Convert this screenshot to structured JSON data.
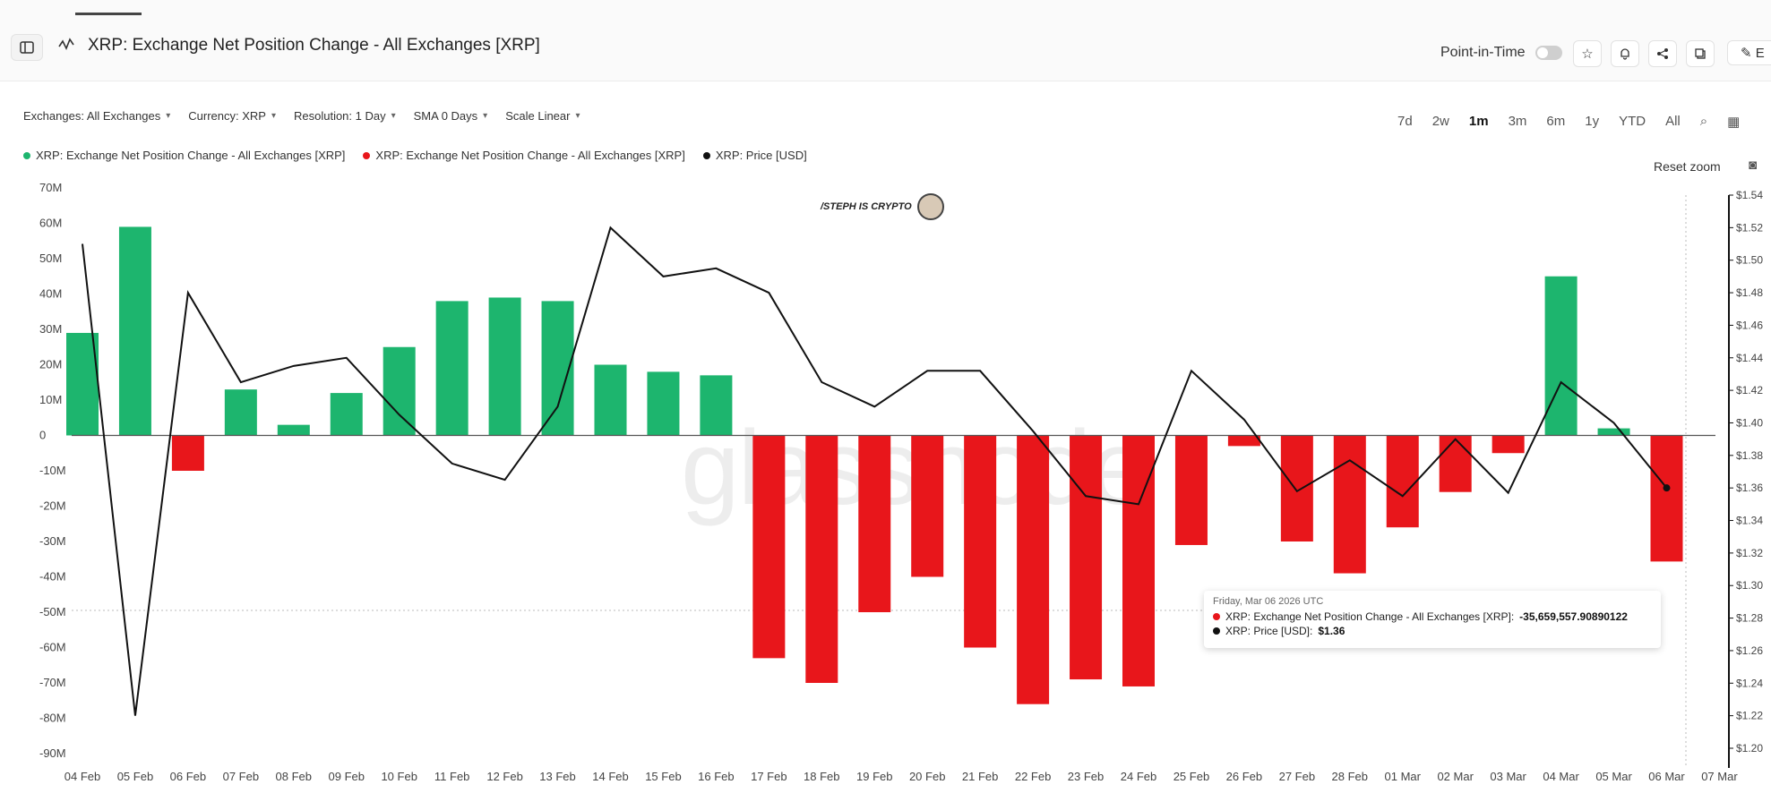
{
  "header": {
    "title": "XRP: Exchange Net Position Change - All Exchanges [XRP]",
    "point_in_time_label": "Point-in-Time",
    "edit_label": "E"
  },
  "filters": [
    {
      "label": "Exchanges: All Exchanges"
    },
    {
      "label": "Currency: XRP"
    },
    {
      "label": "Resolution: 1 Day"
    },
    {
      "label": "SMA 0 Days"
    },
    {
      "label": "Scale Linear"
    }
  ],
  "ranges": {
    "items": [
      "7d",
      "2w",
      "1m",
      "3m",
      "6m",
      "1y",
      "YTD",
      "All"
    ],
    "active": "1m"
  },
  "legend": [
    {
      "label": "XRP: Exchange Net Position Change - All Exchanges [XRP]",
      "color": "#1db56e"
    },
    {
      "label": "XRP: Exchange Net Position Change - All Exchanges [XRP]",
      "color": "#e8161b"
    },
    {
      "label": "XRP: Price [USD]",
      "color": "#111111"
    }
  ],
  "reset_zoom_label": "Reset zoom",
  "watermark": "glassnode",
  "badge": "/STEPH IS CRYPTO",
  "tooltip": {
    "date": "Friday, Mar 06 2026 UTC",
    "rows": [
      {
        "label": "XRP: Exchange Net Position Change - All Exchanges [XRP]:",
        "value": "-35,659,557.90890122",
        "color": "#e8161b"
      },
      {
        "label": "XRP: Price [USD]:",
        "value": "$1.36",
        "color": "#111111"
      }
    ]
  },
  "chart_data": {
    "type": "bar",
    "categories": [
      "04 Feb",
      "05 Feb",
      "06 Feb",
      "07 Feb",
      "08 Feb",
      "09 Feb",
      "10 Feb",
      "11 Feb",
      "12 Feb",
      "13 Feb",
      "14 Feb",
      "15 Feb",
      "16 Feb",
      "17 Feb",
      "18 Feb",
      "19 Feb",
      "20 Feb",
      "21 Feb",
      "22 Feb",
      "23 Feb",
      "24 Feb",
      "25 Feb",
      "26 Feb",
      "27 Feb",
      "28 Feb",
      "01 Mar",
      "02 Mar",
      "03 Mar",
      "04 Mar",
      "05 Mar",
      "06 Mar"
    ],
    "x_tick_labels": [
      "04 Feb",
      "05 Feb",
      "06 Feb",
      "07 Feb",
      "08 Feb",
      "09 Feb",
      "10 Feb",
      "11 Feb",
      "12 Feb",
      "13 Feb",
      "14 Feb",
      "15 Feb",
      "16 Feb",
      "17 Feb",
      "18 Feb",
      "19 Feb",
      "20 Feb",
      "21 Feb",
      "22 Feb",
      "23 Feb",
      "24 Feb",
      "25 Feb",
      "26 Feb",
      "27 Feb",
      "28 Feb",
      "01 Mar",
      "02 Mar",
      "03 Mar",
      "04 Mar",
      "05 Mar",
      "06 Mar",
      "07 Mar"
    ],
    "series": [
      {
        "name": "XRP: Exchange Net Position Change - All Exchanges [XRP]",
        "axis": "left",
        "positive_color": "#1db56e",
        "negative_color": "#e8161b",
        "values": [
          29,
          59,
          -10,
          13,
          3,
          12,
          25,
          38,
          39,
          38,
          20,
          18,
          17,
          -63,
          -70,
          -50,
          -40,
          -60,
          -76,
          -69,
          -71,
          -31,
          -3,
          -30,
          -39,
          -26,
          -16,
          -5,
          45,
          2,
          -35.66
        ]
      },
      {
        "name": "XRP: Price [USD]",
        "axis": "right",
        "type": "line",
        "color": "#111111",
        "values": [
          1.51,
          1.22,
          1.48,
          1.425,
          1.435,
          1.44,
          1.405,
          1.375,
          1.365,
          1.41,
          1.52,
          1.49,
          1.495,
          1.48,
          1.425,
          1.41,
          1.432,
          1.432,
          1.395,
          1.355,
          1.35,
          1.432,
          1.402,
          1.358,
          1.377,
          1.355,
          1.39,
          1.357,
          1.425,
          1.4,
          1.36
        ]
      }
    ],
    "y_left": {
      "ticks": [
        "70M",
        "60M",
        "50M",
        "40M",
        "30M",
        "20M",
        "10M",
        "0",
        "-10M",
        "-20M",
        "-30M",
        "-40M",
        "-50M",
        "-60M",
        "-70M",
        "-80M",
        "-90M"
      ],
      "range": [
        -90,
        70
      ],
      "unit": "M"
    },
    "y_right": {
      "ticks": [
        "$1.54",
        "$1.52",
        "$1.50",
        "$1.48",
        "$1.46",
        "$1.44",
        "$1.42",
        "$1.40",
        "$1.38",
        "$1.36",
        "$1.34",
        "$1.32",
        "$1.30",
        "$1.28",
        "$1.26",
        "$1.24",
        "$1.22",
        "$1.20"
      ],
      "range": [
        1.2,
        1.54
      ]
    },
    "grid": false,
    "legend_position": "top-left"
  }
}
